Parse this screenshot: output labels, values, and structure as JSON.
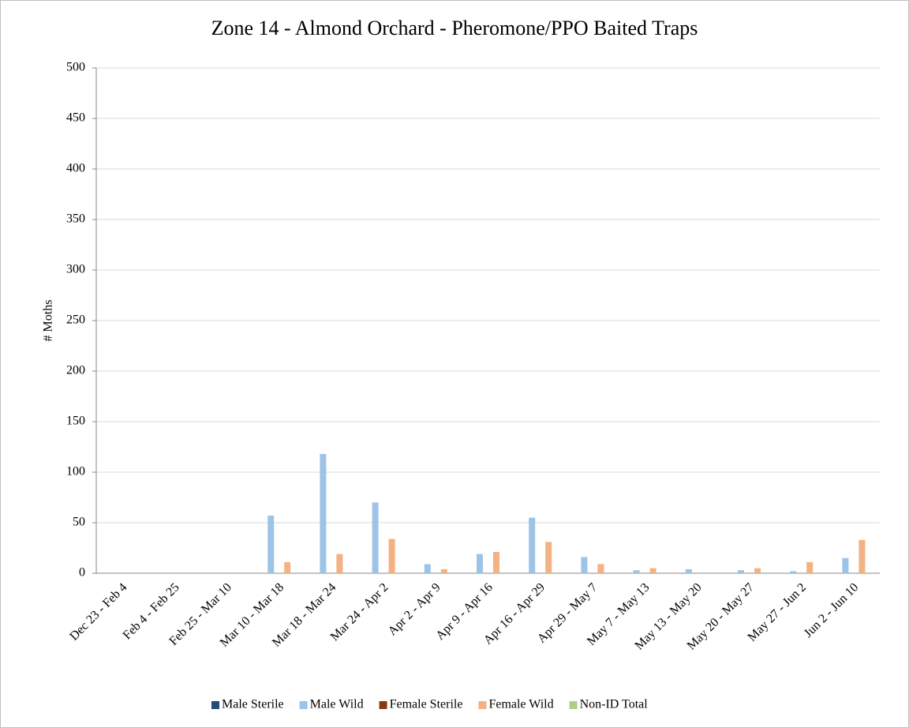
{
  "chart_data": {
    "type": "bar",
    "title": "Zone 14 - Almond Orchard - Pheromone/PPO Baited Traps",
    "y_label": "# Moths",
    "categories": [
      "Dec 23 - Feb 4",
      "Feb 4 - Feb 25",
      "Feb 25 - Mar 10",
      "Mar 10 - Mar 18",
      "Mar 18 - Mar 24",
      "Mar 24 - Apr 2",
      "Apr 2 - Apr 9",
      "Apr 9 - Apr 16",
      "Apr 16 - Apr 29",
      "Apr 29 - May 7",
      "May 7 - May 13",
      "May 13 - May 20",
      "May 20 - May 27",
      "May 27 - Jun 2",
      "Jun 2 - Jun 10"
    ],
    "series": [
      {
        "name": "Male Sterile",
        "color": "#1f4e79",
        "values": [
          0,
          0,
          0,
          0,
          0,
          0,
          0,
          0,
          0,
          0,
          0,
          0,
          0,
          0,
          0
        ]
      },
      {
        "name": "Male Wild",
        "color": "#9dc3e6",
        "values": [
          0,
          0,
          0,
          57,
          118,
          70,
          9,
          19,
          55,
          16,
          3,
          4,
          3,
          2,
          15
        ]
      },
      {
        "name": "Female Sterile",
        "color": "#843c0c",
        "values": [
          0,
          0,
          0,
          0,
          0,
          0,
          0,
          0,
          0,
          0,
          0,
          0,
          0,
          0,
          0
        ]
      },
      {
        "name": "Female Wild",
        "color": "#f4b183",
        "values": [
          0,
          0,
          0,
          11,
          19,
          34,
          4,
          21,
          31,
          9,
          5,
          0,
          5,
          11,
          33
        ]
      },
      {
        "name": "Non-ID Total",
        "color": "#a9d18e",
        "values": [
          0,
          0,
          0,
          0,
          0,
          0,
          0,
          0,
          0,
          0,
          0,
          0,
          0,
          0,
          0
        ]
      }
    ],
    "ylim": [
      0,
      500
    ],
    "yticks": [
      0,
      50,
      100,
      150,
      200,
      250,
      300,
      350,
      400,
      450,
      500
    ],
    "grid": true,
    "legend": "bottom"
  }
}
